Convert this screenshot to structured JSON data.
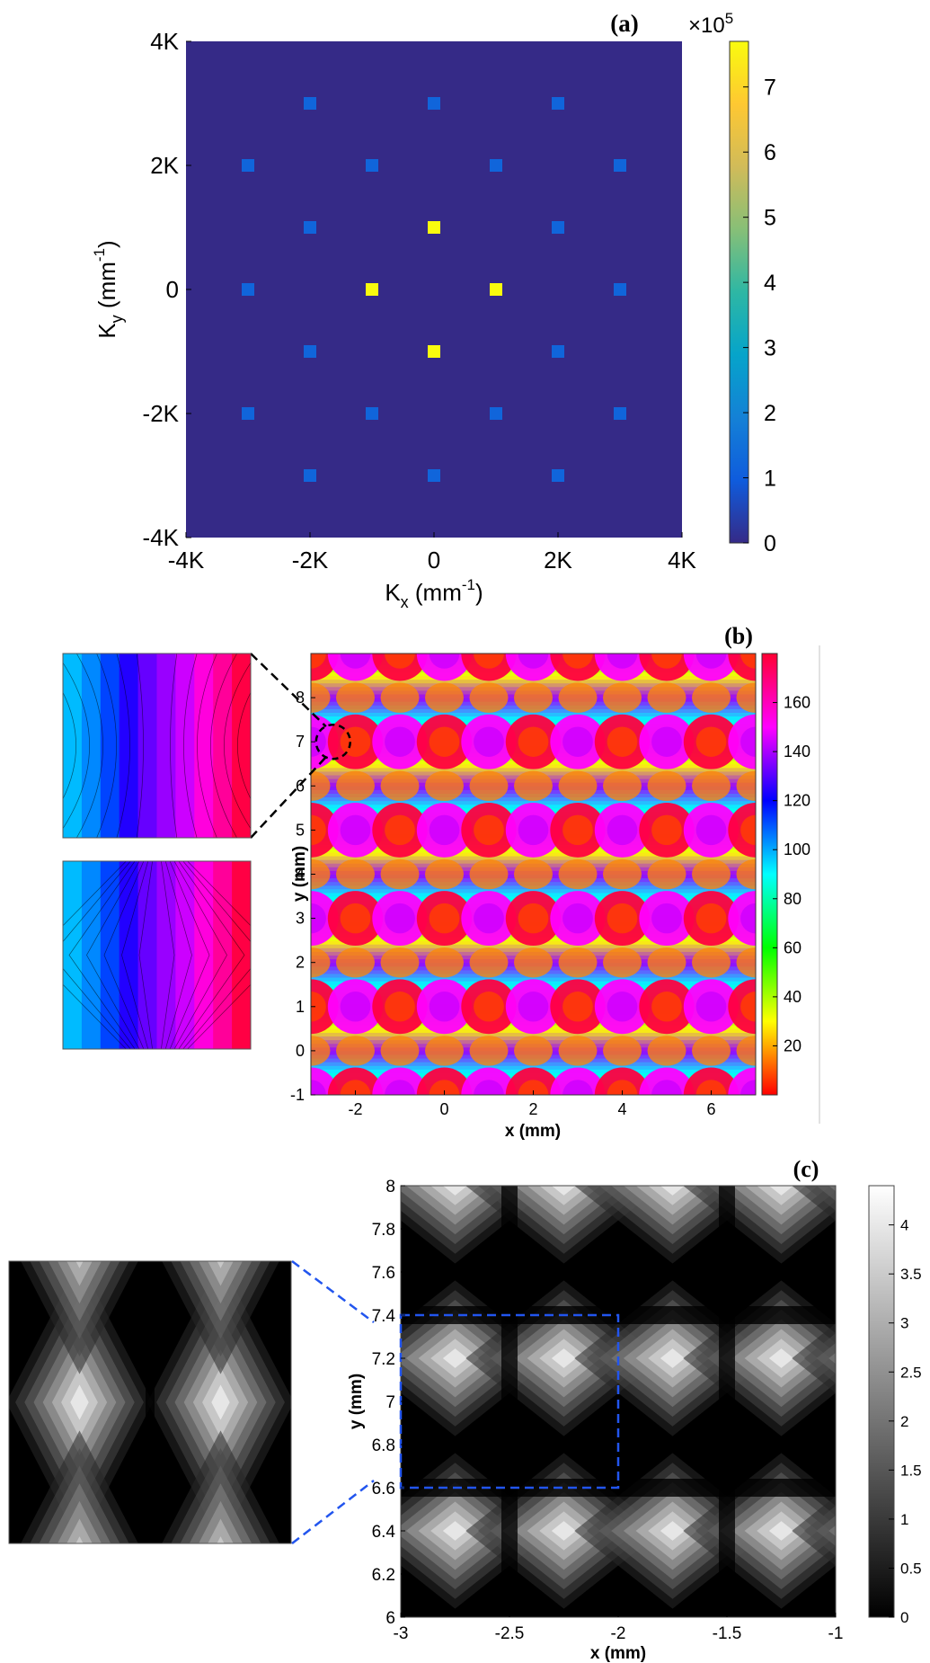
{
  "chart_data": [
    {
      "panel_label": "(a)",
      "type": "heatmap",
      "xlabel": "K",
      "xlabel_sub": "x",
      "xlabel_unit": "(mm",
      "xlabel_exp": "-1",
      "ylabel": "K",
      "ylabel_sub": "y",
      "ylabel_unit": "(mm",
      "ylabel_exp": "-1",
      "xlim": [
        -4,
        4
      ],
      "ylim": [
        -4,
        4
      ],
      "xticks": [
        {
          "v": -4,
          "label": "-4K"
        },
        {
          "v": -2,
          "label": "-2K"
        },
        {
          "v": 0,
          "label": "0"
        },
        {
          "v": 2,
          "label": "2K"
        },
        {
          "v": 4,
          "label": "4K"
        }
      ],
      "yticks": [
        {
          "v": -4,
          "label": "-4K"
        },
        {
          "v": -2,
          "label": "-2K"
        },
        {
          "v": 0,
          "label": "0"
        },
        {
          "v": 2,
          "label": "2K"
        },
        {
          "v": 4,
          "label": "4K"
        }
      ],
      "background_value": 0,
      "colorbar": {
        "min": 0,
        "max": 7.7,
        "ticks": [
          0,
          1,
          2,
          3,
          4,
          5,
          6,
          7
        ],
        "multiplier_base": "×10",
        "multiplier_exp": "5",
        "colormap": "parula"
      },
      "points": [
        {
          "x": 0,
          "y": 1,
          "value": 7.7
        },
        {
          "x": -1,
          "y": 0,
          "value": 7.7
        },
        {
          "x": 1,
          "y": 0,
          "value": 7.7
        },
        {
          "x": 0,
          "y": -1,
          "value": 7.7
        },
        {
          "x": -2,
          "y": 3,
          "value": 1.2
        },
        {
          "x": 0,
          "y": 3,
          "value": 1.2
        },
        {
          "x": 2,
          "y": 3,
          "value": 1.2
        },
        {
          "x": -3,
          "y": 2,
          "value": 1.2
        },
        {
          "x": -1,
          "y": 2,
          "value": 1.2
        },
        {
          "x": 1,
          "y": 2,
          "value": 1.2
        },
        {
          "x": 3,
          "y": 2,
          "value": 1.2
        },
        {
          "x": -2,
          "y": 1,
          "value": 1.2
        },
        {
          "x": 2,
          "y": 1,
          "value": 1.2
        },
        {
          "x": -3,
          "y": 0,
          "value": 1.2
        },
        {
          "x": 3,
          "y": 0,
          "value": 1.2
        },
        {
          "x": -2,
          "y": -1,
          "value": 1.2
        },
        {
          "x": 2,
          "y": -1,
          "value": 1.2
        },
        {
          "x": -3,
          "y": -2,
          "value": 1.2
        },
        {
          "x": -1,
          "y": -2,
          "value": 1.2
        },
        {
          "x": 1,
          "y": -2,
          "value": 1.2
        },
        {
          "x": 3,
          "y": -2,
          "value": 1.2
        },
        {
          "x": -2,
          "y": -3,
          "value": 1.2
        },
        {
          "x": 0,
          "y": -3,
          "value": 1.2
        },
        {
          "x": 2,
          "y": -3,
          "value": 1.2
        }
      ]
    },
    {
      "panel_label": "(b)",
      "type": "heatmap",
      "xlabel": "x (mm)",
      "ylabel": "y (mm)",
      "xlim": [
        -3,
        7
      ],
      "ylim": [
        -1,
        9
      ],
      "xticks": [
        -2,
        0,
        2,
        4,
        6
      ],
      "yticks": [
        -1,
        0,
        1,
        2,
        3,
        4,
        5,
        6,
        7,
        8
      ],
      "lattice_period_mm": 2,
      "colorbar": {
        "min": 0,
        "max": 180,
        "ticks": [
          20,
          40,
          60,
          80,
          100,
          120,
          140,
          160
        ],
        "colormap": "hsv"
      },
      "zoom_circle_center": [
        -2.5,
        7
      ],
      "insets": [
        "top",
        "bottom"
      ]
    },
    {
      "panel_label": "(c)",
      "type": "heatmap",
      "xlabel": "x (mm)",
      "ylabel": "y (mm)",
      "xlim": [
        -3,
        -1
      ],
      "ylim": [
        6,
        8
      ],
      "xticks": [
        -3,
        -2.5,
        -2,
        -1.5,
        -1
      ],
      "yticks": [
        6,
        6.2,
        6.4,
        6.6,
        6.8,
        7,
        7.2,
        7.4,
        7.6,
        7.8,
        8
      ],
      "colorbar": {
        "min": 0,
        "max": 4.4,
        "ticks": [
          0,
          0.5,
          1,
          1.5,
          2,
          2.5,
          3,
          3.5,
          4
        ],
        "colormap": "gray"
      },
      "zoom_box": {
        "x": [
          -3,
          -2
        ],
        "y": [
          6.6,
          7.4
        ]
      }
    }
  ]
}
